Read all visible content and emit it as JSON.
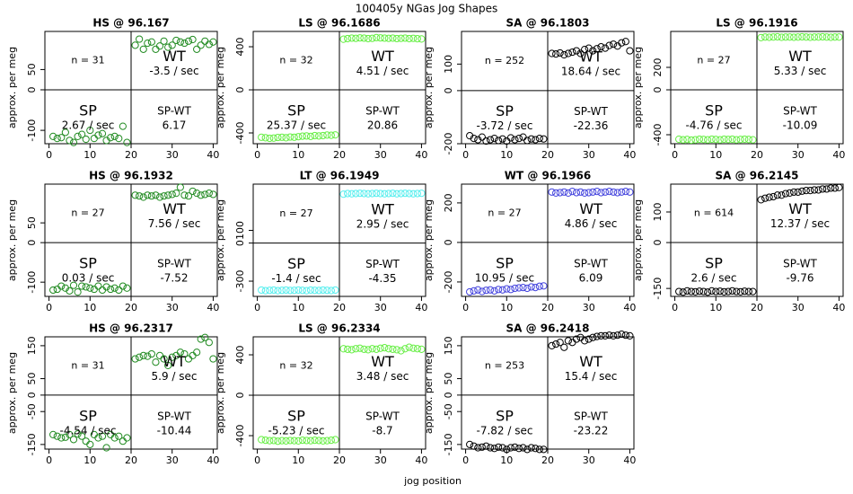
{
  "title": "100405y   NGas Jog Shapes",
  "xlabel": "jog position",
  "chart_data": [
    {
      "type": "scatter",
      "title": "HS @ 96.167",
      "ylabel": "approx. per meg",
      "color": "#228b22",
      "xlim": [
        -1,
        41
      ],
      "xticks": [
        0,
        10,
        20,
        30,
        40
      ],
      "ylim": [
        -133,
        144
      ],
      "yticks": [
        -100,
        0,
        50
      ],
      "vline": 20,
      "hline": 0,
      "annotations": {
        "n": "n = 31",
        "wt": "WT",
        "wt_rate": "-3.5 / sec",
        "sp": "SP",
        "sp_rate": "2.67 / sec",
        "diff_label": "SP-WT",
        "diff": "6.17"
      },
      "x": [
        1,
        2,
        3,
        4,
        5,
        6,
        7,
        8,
        9,
        10,
        11,
        12,
        13,
        14,
        15,
        16,
        17,
        18,
        19,
        21,
        22,
        23,
        24,
        25,
        26,
        27,
        28,
        29,
        30,
        31,
        32,
        33,
        34,
        35,
        36,
        37,
        38,
        39,
        40
      ],
      "values": [
        -115,
        -120,
        -118,
        -105,
        -125,
        -130,
        -115,
        -110,
        -122,
        -100,
        -120,
        -112,
        -108,
        -125,
        -118,
        -115,
        -120,
        -90,
        -130,
        110,
        125,
        100,
        115,
        118,
        100,
        108,
        120,
        105,
        110,
        122,
        118,
        115,
        120,
        124,
        100,
        110,
        120,
        112,
        118
      ]
    },
    {
      "type": "scatter",
      "title": "LS @ 96.1686",
      "ylabel": "approx. per meg",
      "color": "#66ee44",
      "xlim": [
        -1,
        41
      ],
      "xticks": [
        0,
        10,
        20,
        30,
        40
      ],
      "ylim": [
        -500,
        542
      ],
      "yticks": [
        -400,
        0,
        400
      ],
      "vline": 20,
      "hline": 0,
      "annotations": {
        "n": "n = 32",
        "wt": "WT",
        "wt_rate": "4.51 / sec",
        "sp": "SP",
        "sp_rate": "25.37 / sec",
        "diff_label": "SP-WT",
        "diff": "20.86"
      },
      "x": [
        1,
        2,
        3,
        4,
        5,
        6,
        7,
        8,
        9,
        10,
        11,
        12,
        13,
        14,
        15,
        16,
        17,
        18,
        19,
        21,
        22,
        23,
        24,
        25,
        26,
        27,
        28,
        29,
        30,
        31,
        32,
        33,
        34,
        35,
        36,
        37,
        38,
        39,
        40
      ],
      "values": [
        -440,
        -445,
        -450,
        -448,
        -442,
        -440,
        -445,
        -438,
        -440,
        -435,
        -430,
        -428,
        -432,
        -425,
        -428,
        -425,
        -420,
        -422,
        -418,
        470,
        475,
        480,
        478,
        482,
        480,
        475,
        478,
        485,
        482,
        480,
        478,
        480,
        476,
        478,
        480,
        475,
        478,
        474,
        472
      ]
    },
    {
      "type": "scatter",
      "title": "SA @ 96.1803",
      "ylabel": "approx. per meg",
      "color": "#000000",
      "xlim": [
        -1,
        41
      ],
      "xticks": [
        0,
        10,
        20,
        30,
        40
      ],
      "ylim": [
        -200,
        223
      ],
      "yticks": [
        -200,
        0,
        100
      ],
      "vline": 20,
      "hline": 0,
      "annotations": {
        "n": "n = 252",
        "wt": "WT",
        "wt_rate": "18.64 / sec",
        "sp": "SP",
        "sp_rate": "-3.72 / sec",
        "diff_label": "SP-WT",
        "diff": "-22.36"
      },
      "x": [
        1,
        2,
        3,
        4,
        5,
        6,
        7,
        8,
        9,
        10,
        11,
        12,
        13,
        14,
        15,
        16,
        17,
        18,
        19,
        21,
        22,
        23,
        24,
        25,
        26,
        27,
        28,
        29,
        30,
        31,
        32,
        33,
        34,
        35,
        36,
        37,
        38,
        39,
        40
      ],
      "values": [
        -170,
        -180,
        -185,
        -175,
        -190,
        -185,
        -180,
        -188,
        -182,
        -190,
        -178,
        -185,
        -180,
        -175,
        -188,
        -182,
        -185,
        -180,
        -182,
        140,
        138,
        142,
        135,
        140,
        145,
        150,
        140,
        155,
        160,
        150,
        158,
        165,
        160,
        170,
        175,
        168,
        180,
        185,
        150
      ]
    },
    {
      "type": "scatter",
      "title": "LS @ 96.1916",
      "ylabel": "approx. per meg",
      "color": "#66ee44",
      "xlim": [
        -1,
        41
      ],
      "xticks": [
        0,
        10,
        20,
        30,
        40
      ],
      "ylim": [
        -480,
        520
      ],
      "yticks": [
        -400,
        0,
        200
      ],
      "vline": 20,
      "hline": 0,
      "annotations": {
        "n": "n = 27",
        "wt": "WT",
        "wt_rate": "5.33 / sec",
        "sp": "SP",
        "sp_rate": "-4.76 / sec",
        "diff_label": "SP-WT",
        "diff": "-10.09"
      },
      "x": [
        1,
        2,
        3,
        4,
        5,
        6,
        7,
        8,
        9,
        10,
        11,
        12,
        13,
        14,
        15,
        16,
        17,
        18,
        19,
        21,
        22,
        23,
        24,
        25,
        26,
        27,
        28,
        29,
        30,
        31,
        32,
        33,
        34,
        35,
        36,
        37,
        38,
        39,
        40
      ],
      "values": [
        -440,
        -445,
        -442,
        -448,
        -445,
        -440,
        -442,
        -445,
        -440,
        -442,
        -445,
        -440,
        -442,
        -440,
        -445,
        -442,
        -440,
        -442,
        -445,
        465,
        470,
        468,
        470,
        472,
        468,
        470,
        470,
        468,
        470,
        472,
        470,
        468,
        470,
        470,
        472,
        470,
        468,
        470,
        470
      ]
    },
    {
      "type": "scatter",
      "title": "HS @ 96.1932",
      "ylabel": "approx. per meg",
      "color": "#228b22",
      "xlim": [
        -1,
        41
      ],
      "xticks": [
        0,
        10,
        20,
        30,
        40
      ],
      "ylim": [
        -136,
        148
      ],
      "yticks": [
        -100,
        0,
        50
      ],
      "vline": 20,
      "hline": 0,
      "annotations": {
        "n": "n = 27",
        "wt": "WT",
        "wt_rate": "7.56 / sec",
        "sp": "SP",
        "sp_rate": "0.03 / sec",
        "diff_label": "SP-WT",
        "diff": "-7.52"
      },
      "x": [
        1,
        2,
        3,
        4,
        5,
        6,
        7,
        8,
        9,
        10,
        11,
        12,
        13,
        14,
        15,
        16,
        17,
        18,
        19,
        21,
        22,
        23,
        24,
        25,
        26,
        27,
        28,
        29,
        30,
        31,
        32,
        33,
        34,
        35,
        36,
        37,
        38,
        39,
        40
      ],
      "values": [
        -120,
        -118,
        -110,
        -115,
        -122,
        -108,
        -125,
        -110,
        -112,
        -115,
        -118,
        -110,
        -120,
        -112,
        -118,
        -115,
        -120,
        -110,
        -115,
        120,
        118,
        115,
        120,
        118,
        120,
        115,
        118,
        120,
        122,
        125,
        140,
        120,
        118,
        130,
        125,
        120,
        122,
        125,
        122
      ]
    },
    {
      "type": "scatter",
      "title": "LT @ 96.1949",
      "ylabel": "approx. per meg",
      "color": "#55eeee",
      "xlim": [
        -1,
        41
      ],
      "xticks": [
        0,
        10,
        20,
        30,
        40
      ],
      "ylim": [
        -420,
        464
      ],
      "yticks": [
        -300,
        0,
        100
      ],
      "vline": 20,
      "hline": 0,
      "annotations": {
        "n": "n = 27",
        "wt": "WT",
        "wt_rate": "2.95 / sec",
        "sp": "SP",
        "sp_rate": "-1.4 / sec",
        "diff_label": "SP-WT",
        "diff": "-4.35"
      },
      "x": [
        1,
        2,
        3,
        4,
        5,
        6,
        7,
        8,
        9,
        10,
        11,
        12,
        13,
        14,
        15,
        16,
        17,
        18,
        19,
        21,
        22,
        23,
        24,
        25,
        26,
        27,
        28,
        29,
        30,
        31,
        32,
        33,
        34,
        35,
        36,
        37,
        38,
        39,
        40
      ],
      "values": [
        -370,
        -375,
        -372,
        -370,
        -375,
        -372,
        -370,
        -373,
        -372,
        -370,
        -372,
        -375,
        -370,
        -372,
        -373,
        -370,
        -372,
        -374,
        -370,
        385,
        390,
        388,
        390,
        392,
        390,
        388,
        390,
        392,
        390,
        388,
        390,
        392,
        388,
        390,
        392,
        390,
        388,
        390,
        392
      ]
    },
    {
      "type": "scatter",
      "title": "WT @ 96.1966",
      "ylabel": "approx. per meg",
      "color": "#4444dd",
      "xlim": [
        -1,
        41
      ],
      "xticks": [
        0,
        10,
        20,
        30,
        40
      ],
      "ylim": [
        -273,
        295
      ],
      "yticks": [
        -200,
        0,
        200
      ],
      "vline": 20,
      "hline": 0,
      "annotations": {
        "n": "n = 27",
        "wt": "WT",
        "wt_rate": "4.86 / sec",
        "sp": "SP",
        "sp_rate": "10.95 / sec",
        "diff_label": "SP-WT",
        "diff": "6.09"
      },
      "x": [
        1,
        2,
        3,
        4,
        5,
        6,
        7,
        8,
        9,
        10,
        11,
        12,
        13,
        14,
        15,
        16,
        17,
        18,
        19,
        21,
        22,
        23,
        24,
        25,
        26,
        27,
        28,
        29,
        30,
        31,
        32,
        33,
        34,
        35,
        36,
        37,
        38,
        39,
        40
      ],
      "values": [
        -250,
        -245,
        -240,
        -248,
        -242,
        -240,
        -245,
        -238,
        -240,
        -235,
        -238,
        -232,
        -230,
        -228,
        -232,
        -225,
        -228,
        -222,
        -220,
        255,
        250,
        252,
        255,
        250,
        258,
        252,
        255,
        250,
        252,
        255,
        258,
        252,
        255,
        258,
        255,
        252,
        255,
        258,
        255
      ]
    },
    {
      "type": "scatter",
      "title": "SA @ 96.2145",
      "ylabel": "approx. per meg",
      "color": "#000000",
      "xlim": [
        -1,
        41
      ],
      "xticks": [
        0,
        10,
        20,
        30,
        40
      ],
      "ylim": [
        -176,
        191
      ],
      "yticks": [
        -150,
        0,
        100
      ],
      "vline": 20,
      "hline": 0,
      "annotations": {
        "n": "n = 614",
        "wt": "WT",
        "wt_rate": "12.37 / sec",
        "sp": "SP",
        "sp_rate": "2.6 / sec",
        "diff_label": "SP-WT",
        "diff": "-9.76"
      },
      "x": [
        1,
        2,
        3,
        4,
        5,
        6,
        7,
        8,
        9,
        10,
        11,
        12,
        13,
        14,
        15,
        16,
        17,
        18,
        19,
        21,
        22,
        23,
        24,
        25,
        26,
        27,
        28,
        29,
        30,
        31,
        32,
        33,
        34,
        35,
        36,
        37,
        38,
        39,
        40
      ],
      "values": [
        -160,
        -162,
        -158,
        -160,
        -161,
        -159,
        -160,
        -162,
        -158,
        -160,
        -159,
        -161,
        -160,
        -158,
        -160,
        -161,
        -159,
        -160,
        -160,
        140,
        145,
        148,
        150,
        155,
        155,
        160,
        162,
        165,
        165,
        168,
        170,
        170,
        172,
        172,
        175,
        175,
        178,
        178,
        180
      ]
    },
    {
      "type": "scatter",
      "title": "HS @ 96.2317",
      "ylabel": "approx. per meg",
      "color": "#228b22",
      "xlim": [
        -1,
        41
      ],
      "xticks": [
        0,
        10,
        20,
        30,
        40
      ],
      "ylim": [
        -164,
        177
      ],
      "yticks": [
        -150,
        -50,
        0,
        50,
        150
      ],
      "vline": 20,
      "hline": 0,
      "annotations": {
        "n": "n = 31",
        "wt": "WT",
        "wt_rate": "5.9 / sec",
        "sp": "SP",
        "sp_rate": "-4.54 / sec",
        "diff_label": "SP-WT",
        "diff": "-10.44"
      },
      "x": [
        1,
        2,
        3,
        4,
        5,
        6,
        7,
        8,
        9,
        10,
        11,
        12,
        13,
        14,
        15,
        16,
        17,
        18,
        19,
        21,
        22,
        23,
        24,
        25,
        26,
        27,
        28,
        29,
        30,
        31,
        32,
        33,
        34,
        35,
        36,
        37,
        38,
        39,
        40
      ],
      "values": [
        -120,
        -125,
        -130,
        -128,
        -120,
        -135,
        -118,
        -125,
        -140,
        -150,
        -120,
        -130,
        -125,
        -160,
        -120,
        -130,
        -125,
        -140,
        -130,
        110,
        115,
        120,
        118,
        125,
        100,
        120,
        110,
        90,
        115,
        120,
        130,
        125,
        110,
        120,
        130,
        170,
        175,
        160,
        110
      ]
    },
    {
      "type": "scatter",
      "title": "LS @ 96.2334",
      "ylabel": "approx. per meg",
      "color": "#66ee44",
      "xlim": [
        -1,
        41
      ],
      "xticks": [
        0,
        10,
        20,
        30,
        40
      ],
      "ylim": [
        -533,
        578
      ],
      "yticks": [
        -400,
        0,
        400
      ],
      "vline": 20,
      "hline": 0,
      "annotations": {
        "n": "n = 32",
        "wt": "WT",
        "wt_rate": "3.48 / sec",
        "sp": "SP",
        "sp_rate": "-5.23 / sec",
        "diff_label": "SP-WT",
        "diff": "-8.7"
      },
      "x": [
        1,
        2,
        3,
        4,
        5,
        6,
        7,
        8,
        9,
        10,
        11,
        12,
        13,
        14,
        15,
        16,
        17,
        18,
        19,
        21,
        22,
        23,
        24,
        25,
        26,
        27,
        28,
        29,
        30,
        31,
        32,
        33,
        34,
        35,
        36,
        37,
        38,
        39,
        40
      ],
      "values": [
        -440,
        -445,
        -450,
        -448,
        -455,
        -450,
        -452,
        -448,
        -450,
        -452,
        -445,
        -448,
        -450,
        -445,
        -448,
        -452,
        -450,
        -445,
        -440,
        460,
        455,
        450,
        460,
        465,
        455,
        450,
        460,
        455,
        465,
        470,
        460,
        455,
        450,
        440,
        460,
        475,
        465,
        460,
        455
      ]
    },
    {
      "type": "scatter",
      "title": "SA @ 96.2418",
      "ylabel": "approx. per meg",
      "color": "#000000",
      "xlim": [
        -1,
        41
      ],
      "xticks": [
        0,
        10,
        20,
        30,
        40
      ],
      "ylim": [
        -164,
        177
      ],
      "yticks": [
        -150,
        -50,
        0,
        50,
        150
      ],
      "vline": 20,
      "hline": 0,
      "annotations": {
        "n": "n = 253",
        "wt": "WT",
        "wt_rate": "15.4 / sec",
        "sp": "SP",
        "sp_rate": "-7.82 / sec",
        "diff_label": "SP-WT",
        "diff": "-23.22"
      },
      "x": [
        1,
        2,
        3,
        4,
        5,
        6,
        7,
        8,
        9,
        10,
        11,
        12,
        13,
        14,
        15,
        16,
        17,
        18,
        19,
        21,
        22,
        23,
        24,
        25,
        26,
        27,
        28,
        29,
        30,
        31,
        32,
        33,
        34,
        35,
        36,
        37,
        38,
        39,
        40
      ],
      "values": [
        -150,
        -155,
        -160,
        -158,
        -155,
        -160,
        -162,
        -158,
        -160,
        -165,
        -160,
        -158,
        -162,
        -160,
        -165,
        -160,
        -162,
        -165,
        -165,
        150,
        155,
        160,
        145,
        165,
        160,
        170,
        175,
        165,
        170,
        175,
        178,
        180,
        180,
        182,
        180,
        182,
        185,
        182,
        180
      ]
    }
  ]
}
